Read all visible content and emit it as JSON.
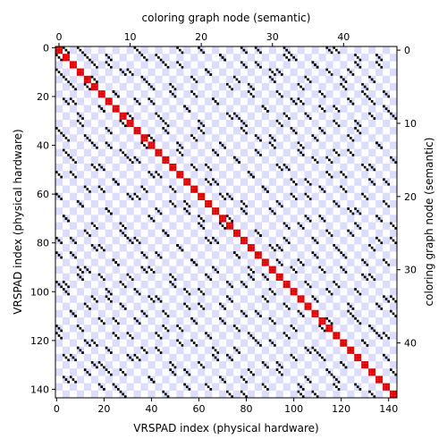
{
  "chart_data": {
    "type": "heatmap",
    "x_bottom": {
      "label": "VRSPAD index (physical hardware)",
      "range": [
        0,
        143
      ],
      "ticks": [
        0,
        20,
        40,
        60,
        80,
        100,
        120,
        140
      ]
    },
    "y_left": {
      "label": "VRSPAD index (physical hardware)",
      "range": [
        0,
        143
      ],
      "ticks": [
        0,
        20,
        40,
        60,
        80,
        100,
        120,
        140
      ],
      "inverted": true
    },
    "x_top": {
      "label": "coloring graph node (semantic)",
      "range": [
        0,
        47
      ],
      "ticks": [
        0,
        10,
        20,
        30,
        40
      ]
    },
    "y_right": {
      "label": "coloring graph node (semantic)",
      "range": [
        0,
        47
      ],
      "ticks": [
        0,
        10,
        20,
        30,
        40
      ],
      "inverted": true
    },
    "checkerboard_block": 3,
    "colors": {
      "diagonal": "#e00000",
      "offdiagonal": "#000000",
      "checker": "#dcdcff",
      "background": "#ffffff"
    },
    "diagonal_block_indices": [
      0,
      1,
      2,
      3,
      4,
      5,
      6,
      7,
      8,
      9,
      10,
      11,
      12,
      13,
      14,
      15,
      16,
      17,
      18,
      19,
      20,
      21,
      22,
      23,
      24,
      25,
      26,
      27,
      28,
      29,
      30,
      31,
      32,
      33,
      34,
      35,
      36,
      37,
      38,
      39,
      40,
      41,
      42,
      43,
      44,
      45,
      46,
      47
    ],
    "offdiagonal_blocks": [
      [
        0,
        3
      ],
      [
        0,
        11
      ],
      [
        0,
        20
      ],
      [
        0,
        26
      ],
      [
        0,
        32
      ],
      [
        0,
        39
      ],
      [
        1,
        0
      ],
      [
        1,
        7
      ],
      [
        1,
        14
      ],
      [
        1,
        23
      ],
      [
        1,
        33
      ],
      [
        1,
        45
      ],
      [
        2,
        5
      ],
      [
        2,
        17
      ],
      [
        2,
        28
      ],
      [
        2,
        36
      ],
      [
        2,
        42
      ],
      [
        3,
        9
      ],
      [
        3,
        21
      ],
      [
        3,
        30
      ],
      [
        3,
        38
      ],
      [
        4,
        1
      ],
      [
        4,
        12
      ],
      [
        4,
        25
      ],
      [
        4,
        35
      ],
      [
        4,
        44
      ],
      [
        5,
        4
      ],
      [
        5,
        16
      ],
      [
        5,
        27
      ],
      [
        5,
        40
      ],
      [
        6,
        8
      ],
      [
        6,
        19
      ],
      [
        6,
        31
      ],
      [
        6,
        43
      ],
      [
        7,
        2
      ],
      [
        7,
        13
      ],
      [
        7,
        22
      ],
      [
        7,
        34
      ],
      [
        7,
        41
      ],
      [
        8,
        6
      ],
      [
        8,
        18
      ],
      [
        8,
        29
      ],
      [
        8,
        37
      ],
      [
        8,
        46
      ],
      [
        9,
        10
      ],
      [
        9,
        24
      ],
      [
        9,
        32
      ],
      [
        9,
        44
      ],
      [
        10,
        3
      ],
      [
        10,
        15
      ],
      [
        10,
        26
      ],
      [
        10,
        39
      ],
      [
        11,
        7
      ],
      [
        11,
        20
      ],
      [
        11,
        33
      ],
      [
        11,
        42
      ],
      [
        12,
        1
      ],
      [
        12,
        13
      ],
      [
        12,
        28
      ],
      [
        12,
        36
      ],
      [
        13,
        5
      ],
      [
        13,
        17
      ],
      [
        13,
        30
      ],
      [
        13,
        45
      ],
      [
        14,
        9
      ],
      [
        14,
        22
      ],
      [
        14,
        34
      ],
      [
        14,
        41
      ],
      [
        15,
        2
      ],
      [
        15,
        11
      ],
      [
        15,
        25
      ],
      [
        15,
        38
      ],
      [
        16,
        6
      ],
      [
        16,
        19
      ],
      [
        16,
        31
      ],
      [
        16,
        44
      ],
      [
        17,
        0
      ],
      [
        17,
        14
      ],
      [
        17,
        27
      ],
      [
        17,
        40
      ],
      [
        18,
        8
      ],
      [
        18,
        21
      ],
      [
        18,
        35
      ],
      [
        18,
        46
      ],
      [
        19,
        4
      ],
      [
        19,
        12
      ],
      [
        19,
        29
      ],
      [
        19,
        37
      ],
      [
        20,
        10
      ],
      [
        20,
        23
      ],
      [
        20,
        33
      ],
      [
        20,
        43
      ],
      [
        21,
        3
      ],
      [
        21,
        16
      ],
      [
        21,
        26
      ],
      [
        21,
        39
      ],
      [
        22,
        7
      ],
      [
        22,
        18
      ],
      [
        22,
        30
      ],
      [
        22,
        41
      ],
      [
        23,
        1
      ],
      [
        23,
        13
      ],
      [
        23,
        24
      ],
      [
        23,
        35
      ],
      [
        23,
        45
      ],
      [
        24,
        5
      ],
      [
        24,
        20
      ],
      [
        24,
        32
      ],
      [
        24,
        42
      ],
      [
        25,
        9
      ],
      [
        25,
        15
      ],
      [
        25,
        28
      ],
      [
        25,
        38
      ],
      [
        26,
        2
      ],
      [
        26,
        11
      ],
      [
        26,
        22
      ],
      [
        26,
        36
      ],
      [
        26,
        47
      ],
      [
        27,
        6
      ],
      [
        27,
        17
      ],
      [
        27,
        31
      ],
      [
        27,
        44
      ],
      [
        28,
        0
      ],
      [
        28,
        14
      ],
      [
        28,
        25
      ],
      [
        28,
        40
      ],
      [
        29,
        8
      ],
      [
        29,
        19
      ],
      [
        29,
        34
      ],
      [
        29,
        46
      ],
      [
        30,
        4
      ],
      [
        30,
        12
      ],
      [
        30,
        27
      ],
      [
        30,
        37
      ],
      [
        31,
        3
      ],
      [
        31,
        10
      ],
      [
        31,
        21
      ],
      [
        31,
        29
      ],
      [
        31,
        43
      ],
      [
        32,
        1
      ],
      [
        32,
        16
      ],
      [
        32,
        26
      ],
      [
        32,
        39
      ],
      [
        33,
        7
      ],
      [
        33,
        18
      ],
      [
        33,
        30
      ],
      [
        33,
        42
      ],
      [
        34,
        5
      ],
      [
        34,
        13
      ],
      [
        34,
        24
      ],
      [
        34,
        36
      ],
      [
        34,
        47
      ],
      [
        35,
        9
      ],
      [
        35,
        20
      ],
      [
        35,
        32
      ],
      [
        35,
        45
      ],
      [
        36,
        2
      ],
      [
        36,
        15
      ],
      [
        36,
        28
      ],
      [
        36,
        41
      ],
      [
        37,
        6
      ],
      [
        37,
        11
      ],
      [
        37,
        23
      ],
      [
        37,
        38
      ],
      [
        38,
        0
      ],
      [
        38,
        17
      ],
      [
        38,
        33
      ],
      [
        38,
        44
      ],
      [
        39,
        8
      ],
      [
        39,
        14
      ],
      [
        39,
        27
      ],
      [
        39,
        46
      ],
      [
        40,
        4
      ],
      [
        40,
        19
      ],
      [
        40,
        30
      ],
      [
        40,
        43
      ],
      [
        41,
        3
      ],
      [
        41,
        12
      ],
      [
        41,
        25
      ],
      [
        41,
        35
      ],
      [
        42,
        1
      ],
      [
        42,
        10
      ],
      [
        42,
        22
      ],
      [
        42,
        37
      ],
      [
        43,
        5
      ],
      [
        43,
        16
      ],
      [
        43,
        29
      ],
      [
        43,
        40
      ],
      [
        44,
        7
      ],
      [
        44,
        18
      ],
      [
        44,
        31
      ],
      [
        44,
        47
      ],
      [
        45,
        2
      ],
      [
        45,
        13
      ],
      [
        45,
        26
      ],
      [
        45,
        39
      ],
      [
        46,
        6
      ],
      [
        46,
        21
      ],
      [
        46,
        34
      ],
      [
        46,
        42
      ],
      [
        47,
        9
      ],
      [
        47,
        15
      ],
      [
        47,
        24
      ],
      [
        47,
        36
      ]
    ]
  }
}
